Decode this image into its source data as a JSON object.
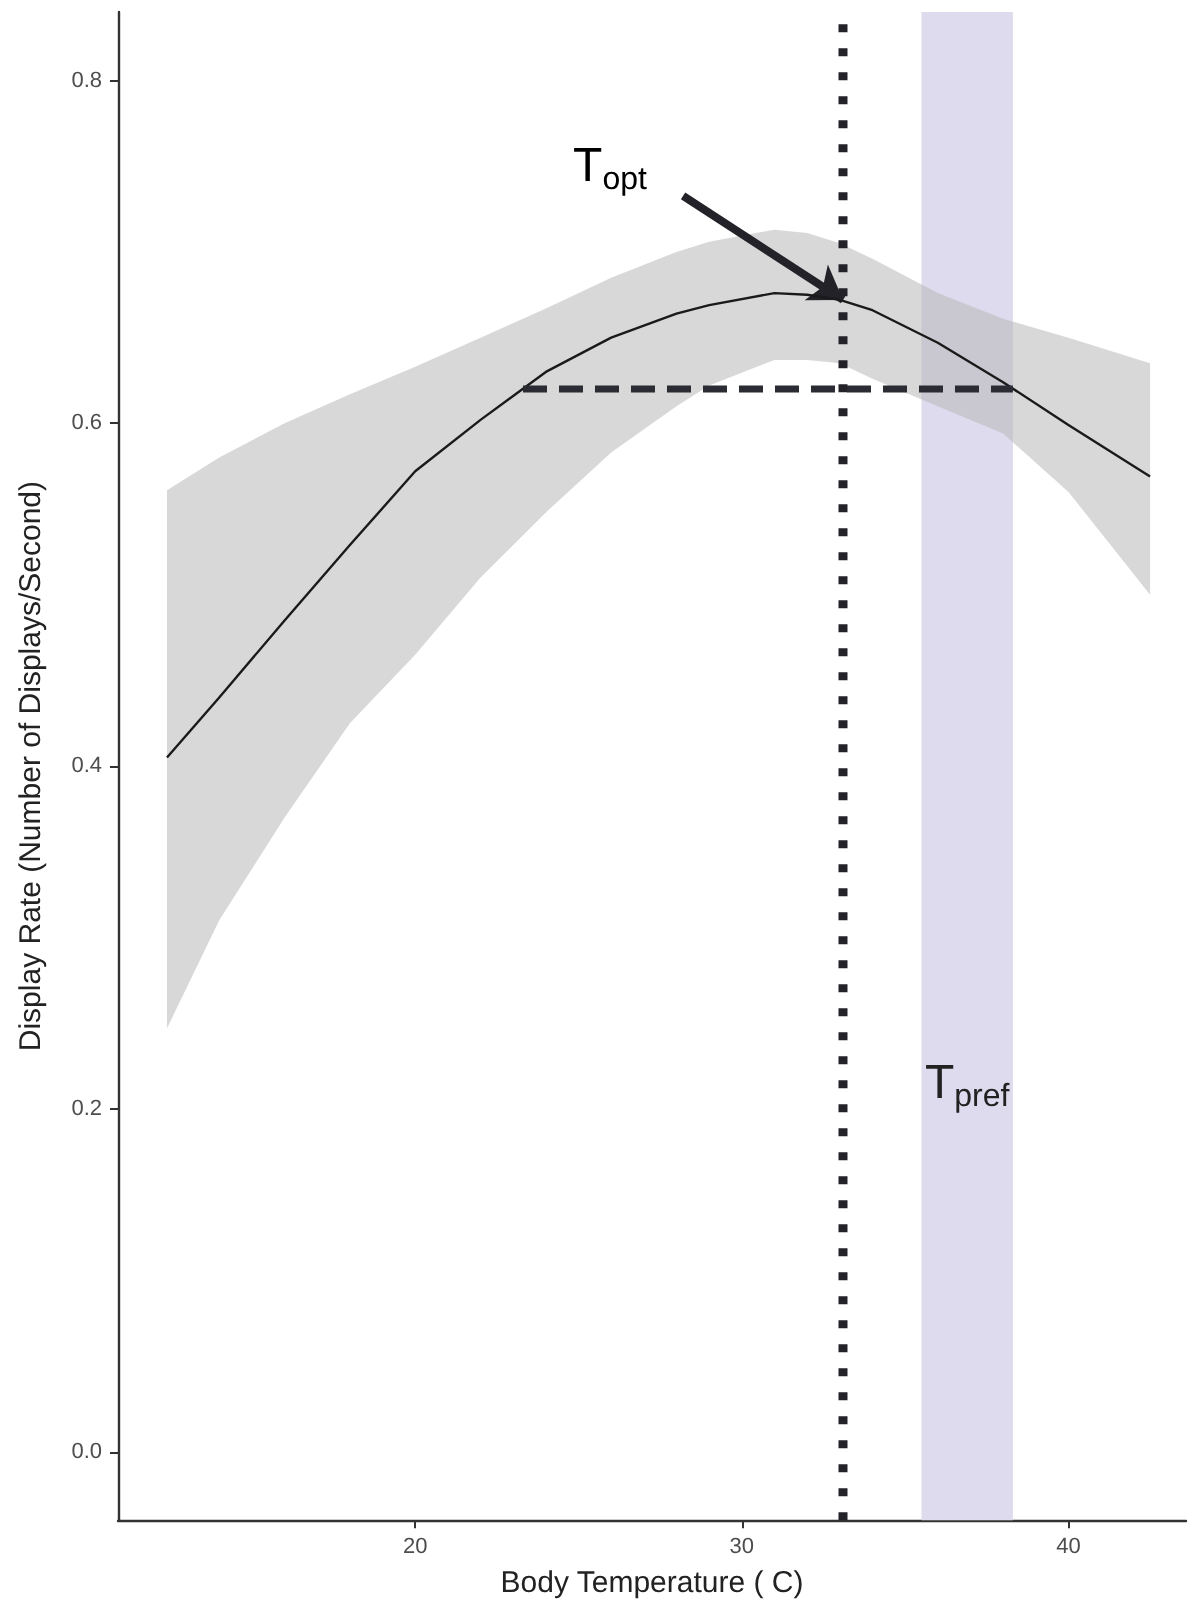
{
  "chart_data": {
    "type": "line",
    "xlabel": "Body Temperature ( C)",
    "ylabel": "Display Rate (Number of Displays/Second)",
    "xlim": [
      10.9,
      43.6
    ],
    "ylim": [
      -0.04,
      0.84
    ],
    "xticks": [
      20,
      30,
      40
    ],
    "yticks": [
      {
        "value": 0,
        "label": "0.0"
      },
      0.2,
      0.4,
      0.6,
      0.8
    ],
    "grid": false,
    "marker": "none",
    "series": [
      {
        "color": "#1a1a1a",
        "line_style": "solid",
        "x": [
          12.4,
          14,
          16,
          18,
          20,
          22,
          24,
          26,
          28,
          29,
          31,
          32,
          33,
          34,
          36,
          38,
          40,
          42.5
        ],
        "values": [
          0.405,
          0.44,
          0.485,
          0.529,
          0.572,
          0.602,
          0.63,
          0.65,
          0.664,
          0.669,
          0.676,
          0.675,
          0.672,
          0.666,
          0.647,
          0.624,
          0.599,
          0.569
        ],
        "lower": [
          0.247,
          0.31,
          0.37,
          0.425,
          0.465,
          0.51,
          0.548,
          0.583,
          0.61,
          0.622,
          0.637,
          0.637,
          0.635,
          0.626,
          0.61,
          0.594,
          0.56,
          0.5
        ],
        "upper": [
          0.561,
          0.58,
          0.6,
          0.617,
          0.633,
          0.65,
          0.667,
          0.685,
          0.7,
          0.706,
          0.713,
          0.711,
          0.705,
          0.696,
          0.676,
          0.661,
          0.65,
          0.635
        ]
      },
      {
        "color": "#2b2b33",
        "line_style": "dashed",
        "x": [
          23.3,
          38.3
        ],
        "values": [
          0.62,
          0.62
        ]
      }
    ],
    "ref_lines": [
      {
        "axis": "x",
        "value": 33.1,
        "color": "#222228",
        "line_style": "dotted"
      }
    ],
    "bands": [
      {
        "axis": "x",
        "from": 35.5,
        "to": 38.3,
        "label": "T$_{pref}$",
        "color": "#dedbef"
      }
    ],
    "annotations": [
      {
        "text": "T$_{opt}$",
        "x": 33.1,
        "y": 0.672
      }
    ]
  }
}
